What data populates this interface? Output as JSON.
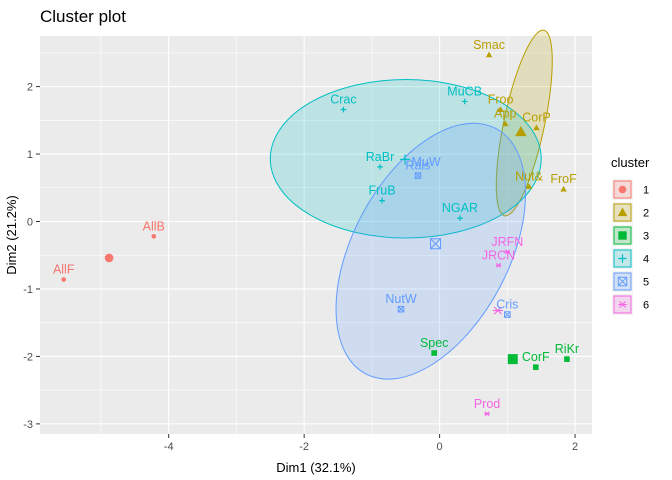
{
  "chart_data": {
    "type": "scatter",
    "title": "Cluster plot",
    "xlabel": "Dim1 (32.1%)",
    "ylabel": "Dim2 (21.2%)",
    "xlim": [
      -5.9,
      2.25
    ],
    "ylim": [
      -3.15,
      2.75
    ],
    "x_ticks": [
      -4,
      -2,
      0,
      2
    ],
    "y_ticks": [
      -3,
      -2,
      -1,
      0,
      1,
      2
    ],
    "grid": true,
    "legend": {
      "title": "cluster",
      "position": "right",
      "entries": [
        "1",
        "2",
        "3",
        "4",
        "5",
        "6"
      ]
    },
    "series": [
      {
        "name": "1",
        "color": "#F8766D",
        "shape": "circle",
        "points": [
          {
            "label": "AllB",
            "x": -4.22,
            "y": -0.22
          },
          {
            "label": "AllF",
            "x": -5.55,
            "y": -0.86
          }
        ],
        "center": [
          -4.88,
          -0.54
        ],
        "hull": null
      },
      {
        "name": "2",
        "color": "#B79F00",
        "shape": "triangle",
        "points": [
          {
            "label": "Smac",
            "x": 0.73,
            "y": 2.47
          },
          {
            "label": "Froo",
            "x": 0.9,
            "y": 1.66
          },
          {
            "label": "App",
            "x": 0.97,
            "y": 1.45
          },
          {
            "label": "CorP",
            "x": 1.43,
            "y": 1.39
          },
          {
            "label": "Nut&",
            "x": 1.32,
            "y": 0.52
          },
          {
            "label": "FroF",
            "x": 1.83,
            "y": 0.48
          }
        ],
        "center": [
          1.2,
          1.33
        ],
        "hull": {
          "cx": 1.25,
          "cy": 1.46,
          "rx": 1.4,
          "ry": 0.3,
          "angle_deg": -78
        }
      },
      {
        "name": "3",
        "color": "#00BA38",
        "shape": "square",
        "points": [
          {
            "label": "Spec",
            "x": -0.08,
            "y": -1.95
          },
          {
            "label": "CorF",
            "x": 1.42,
            "y": -2.16
          },
          {
            "label": "RiKr",
            "x": 1.88,
            "y": -2.04
          }
        ],
        "center": [
          1.08,
          -2.04
        ],
        "hull": null
      },
      {
        "name": "4",
        "color": "#00BFC4",
        "shape": "cross",
        "points": [
          {
            "label": "Crac",
            "x": -1.42,
            "y": 1.66
          },
          {
            "label": "MuCB",
            "x": 0.37,
            "y": 1.78
          },
          {
            "label": "RaBr",
            "x": -0.88,
            "y": 0.81
          },
          {
            "label": "FruB",
            "x": -0.85,
            "y": 0.31
          },
          {
            "label": "NGAR",
            "x": 0.3,
            "y": 0.05
          }
        ],
        "center": [
          -0.51,
          0.92
        ],
        "hull": {
          "cx": -0.5,
          "cy": 0.93,
          "rx": 2.0,
          "ry": 1.17,
          "angle_deg": 0
        }
      },
      {
        "name": "5",
        "color": "#619CFF",
        "shape": "boxed-x",
        "points": [
          {
            "label": "Rais",
            "x": -0.32,
            "y": 0.68
          },
          {
            "label": "NutW",
            "x": -0.57,
            "y": -1.3
          },
          {
            "label": "Cris",
            "x": 1.0,
            "y": -1.38
          }
        ],
        "center": [
          -0.06,
          -0.33
        ],
        "hull": {
          "cx": -0.13,
          "cy": -0.44,
          "rx": 2.05,
          "ry": 1.15,
          "angle_deg": -62
        }
      },
      {
        "name": "6",
        "color": "#F564E3",
        "shape": "asterisk",
        "points": [
          {
            "label": "JRFN",
            "x": 1.0,
            "y": -0.45
          },
          {
            "label": "JRCN",
            "x": 0.87,
            "y": -0.65
          },
          {
            "label": "Prod",
            "x": 0.7,
            "y": -2.85
          }
        ],
        "center": [
          0.86,
          -1.32
        ],
        "hull": null
      }
    ],
    "extra_labels": [
      {
        "label": "MuW",
        "x": -0.2,
        "y": 0.88,
        "cluster": "5"
      }
    ]
  }
}
